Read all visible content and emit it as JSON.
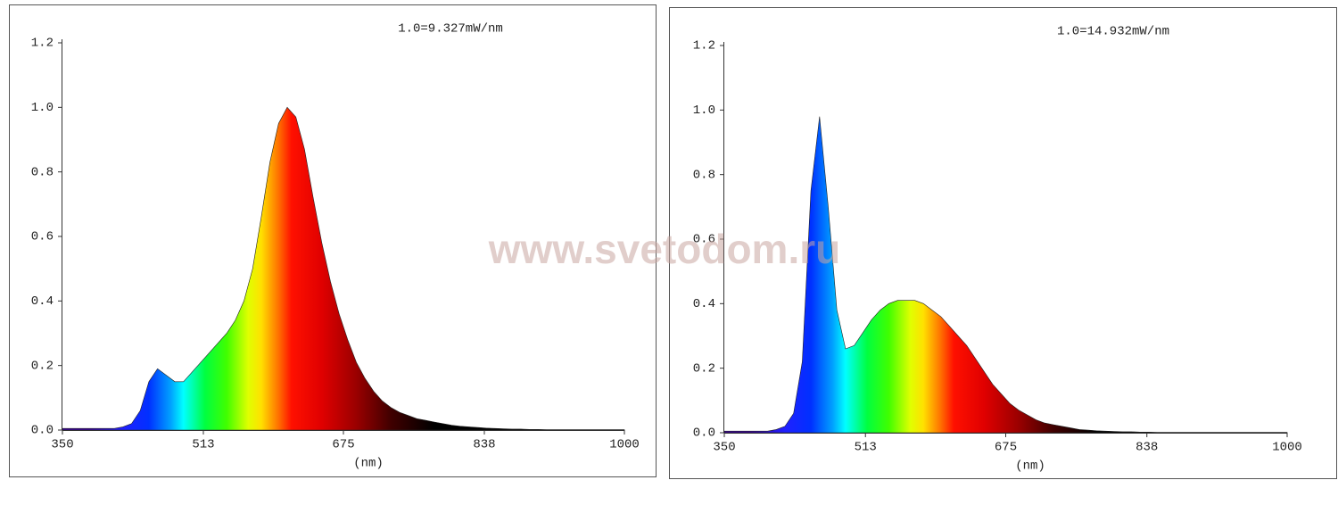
{
  "watermark": "www.svetodom.ru",
  "chart_data": [
    {
      "type": "area",
      "annotation": "1.0=9.327mW/nm",
      "x_label": "(nm)",
      "xlim": [
        350,
        1000
      ],
      "xticks": [
        350,
        513,
        675,
        838,
        1000
      ],
      "ylim": [
        0,
        1.2
      ],
      "yticks": [
        {
          "value": 0,
          "label": "0.0"
        },
        0.2,
        0.4,
        0.6,
        0.8,
        {
          "value": 1,
          "label": "1.0"
        },
        1.2
      ],
      "x": [
        350,
        360,
        370,
        380,
        390,
        400,
        410,
        420,
        430,
        440,
        450,
        460,
        470,
        480,
        490,
        500,
        510,
        520,
        530,
        540,
        550,
        560,
        570,
        580,
        590,
        600,
        610,
        620,
        630,
        640,
        650,
        660,
        670,
        680,
        690,
        700,
        710,
        720,
        730,
        740,
        750,
        760,
        770,
        780,
        790,
        800,
        810,
        820,
        830,
        840,
        850,
        860,
        870,
        880,
        890,
        900,
        910,
        920,
        930,
        940,
        950,
        960,
        970,
        980,
        990,
        1000
      ],
      "values": [
        0.005,
        0.005,
        0.005,
        0.005,
        0.005,
        0.005,
        0.005,
        0.01,
        0.02,
        0.06,
        0.15,
        0.19,
        0.17,
        0.15,
        0.15,
        0.18,
        0.21,
        0.24,
        0.27,
        0.3,
        0.34,
        0.4,
        0.5,
        0.66,
        0.83,
        0.95,
        1.0,
        0.97,
        0.87,
        0.72,
        0.58,
        0.46,
        0.36,
        0.28,
        0.21,
        0.16,
        0.12,
        0.09,
        0.07,
        0.055,
        0.045,
        0.035,
        0.03,
        0.025,
        0.02,
        0.015,
        0.012,
        0.01,
        0.008,
        0.006,
        0.005,
        0.004,
        0.003,
        0.003,
        0.002,
        0.002,
        0.001,
        0.001,
        0.001,
        0.001,
        0.001,
        0.001,
        0.001,
        0.001,
        0.001,
        0.001
      ]
    },
    {
      "type": "area",
      "annotation": "1.0=14.932mW/nm",
      "x_label": "(nm)",
      "xlim": [
        350,
        1000
      ],
      "xticks": [
        350,
        513,
        675,
        838,
        1000
      ],
      "ylim": [
        0,
        1.2
      ],
      "yticks": [
        {
          "value": 0,
          "label": "0.0"
        },
        0.2,
        0.4,
        0.6,
        0.8,
        {
          "value": 1,
          "label": "1.0"
        },
        1.2
      ],
      "x": [
        350,
        360,
        370,
        380,
        390,
        400,
        410,
        420,
        430,
        440,
        450,
        460,
        470,
        480,
        490,
        500,
        510,
        520,
        530,
        540,
        550,
        560,
        570,
        580,
        590,
        600,
        610,
        620,
        630,
        640,
        650,
        660,
        670,
        680,
        690,
        700,
        710,
        720,
        730,
        740,
        750,
        760,
        770,
        780,
        790,
        800,
        810,
        820,
        830,
        840,
        850,
        860,
        870,
        880,
        890,
        900,
        910,
        920,
        930,
        940,
        950,
        960,
        970,
        980,
        990,
        1000
      ],
      "values": [
        0.005,
        0.005,
        0.005,
        0.005,
        0.005,
        0.005,
        0.01,
        0.02,
        0.06,
        0.22,
        0.75,
        0.98,
        0.7,
        0.38,
        0.26,
        0.27,
        0.31,
        0.35,
        0.38,
        0.4,
        0.41,
        0.41,
        0.41,
        0.4,
        0.38,
        0.36,
        0.33,
        0.3,
        0.27,
        0.23,
        0.19,
        0.15,
        0.12,
        0.09,
        0.07,
        0.055,
        0.04,
        0.03,
        0.025,
        0.02,
        0.015,
        0.01,
        0.008,
        0.006,
        0.005,
        0.004,
        0.003,
        0.003,
        0.002,
        0.002,
        0.001,
        0.001,
        0.001,
        0.001,
        0.001,
        0.001,
        0.001,
        0.001,
        0.001,
        0.001,
        0.001,
        0.001,
        0.001,
        0.001,
        0.001,
        0.001
      ]
    }
  ]
}
